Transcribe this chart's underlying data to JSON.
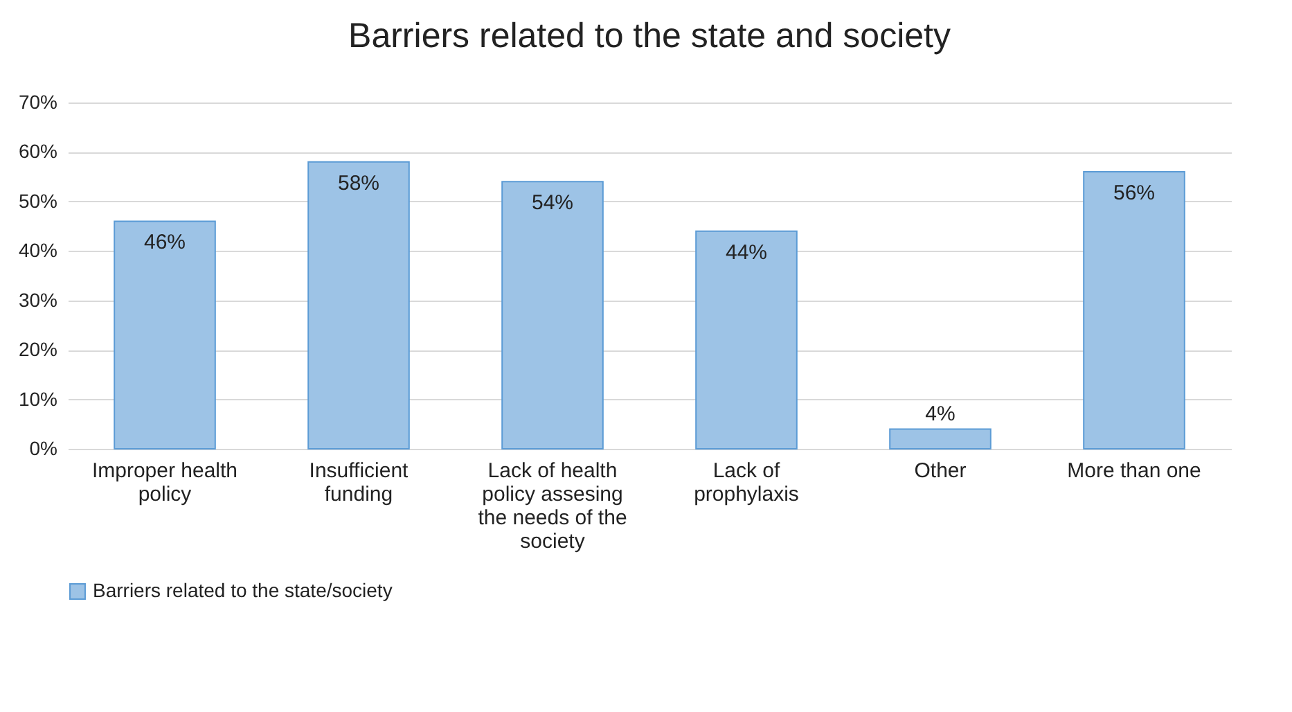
{
  "chart_data": {
    "type": "bar",
    "title": "Barriers related to the state and society",
    "categories": [
      "Improper health policy",
      "Insufficient funding",
      "Lack of health policy assesing the needs of the society",
      "Lack of prophylaxis",
      "Other",
      "More than one"
    ],
    "series": [
      {
        "name": "Barriers related to the state/society",
        "color": "#9dc3e6",
        "values": [
          46,
          58,
          54,
          44,
          4,
          56
        ]
      }
    ],
    "value_labels": [
      "46%",
      "58%",
      "54%",
      "44%",
      "4%",
      "56%"
    ],
    "ylim": [
      0,
      70
    ],
    "yticks": [
      {
        "value": 0,
        "label": "0%"
      },
      {
        "value": 10,
        "label": "10%"
      },
      {
        "value": 20,
        "label": "20%"
      },
      {
        "value": 30,
        "label": "30%"
      },
      {
        "value": 40,
        "label": "40%"
      },
      {
        "value": 50,
        "label": "50%"
      },
      {
        "value": 60,
        "label": "60%"
      },
      {
        "value": 70,
        "label": "70%"
      }
    ],
    "grid": "y",
    "legend": "bottom"
  }
}
